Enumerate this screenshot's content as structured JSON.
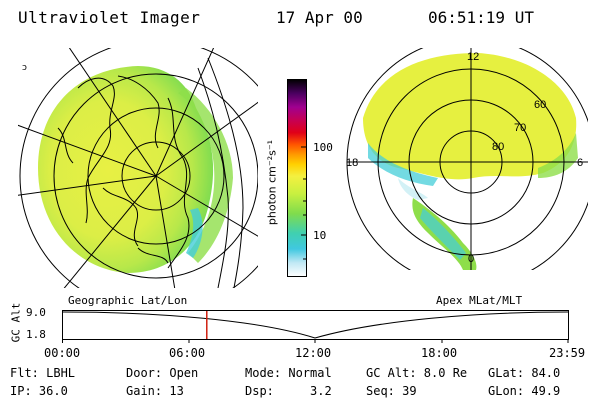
{
  "header": {
    "instrument": "Ultraviolet Imager",
    "date": "17 Apr 00",
    "time": "06:51:19 UT"
  },
  "left_panel": {
    "caption": "Geographic Lat/Lon"
  },
  "right_panel": {
    "caption": "Apex MLat/MLT",
    "mlt_labels": [
      "12",
      "6",
      "0",
      "18"
    ],
    "mlat_labels": [
      "60",
      "70",
      "80"
    ]
  },
  "colorbar": {
    "unit_label": "photon cm⁻²s⁻¹",
    "ticks": [
      "100",
      "10"
    ],
    "colors_top_to_bottom": [
      "#000000",
      "#5a0066",
      "#a00090",
      "#c80050",
      "#e00018",
      "#ff3300",
      "#ff6600",
      "#ff9900",
      "#ffcc00",
      "#ffee55",
      "#f0f030",
      "#c8f040",
      "#9ae64a",
      "#70dc50",
      "#40d8a0",
      "#30c8d8",
      "#a0e0f0",
      "#ffffff"
    ]
  },
  "altitude_plot": {
    "ylabel": "GC Alt",
    "yticks": [
      "9.0",
      "1.8"
    ],
    "xticks": [
      "00:00",
      "06:00",
      "12:00",
      "18:00",
      "23:59"
    ],
    "current_time_hours": 6.85
  },
  "footer": {
    "filter": "Flt: LBHL",
    "door": "Door: Open",
    "mode": "Mode: Normal",
    "gc_alt": "GC Alt: 8.0 Re",
    "glat": "GLat:  84.0",
    "ip": "IP: 36.0",
    "gain": "Gain: 13",
    "dsp_label": "Dsp:",
    "dsp_value": "3.2",
    "seq": "Seq: 39",
    "glon": "GLon:  49.9"
  },
  "colors": {
    "aurora_yellow": "#e6f040",
    "aurora_green": "#8ede4a",
    "aurora_cyan": "#44cdd8",
    "marker_red": "#d02010"
  }
}
